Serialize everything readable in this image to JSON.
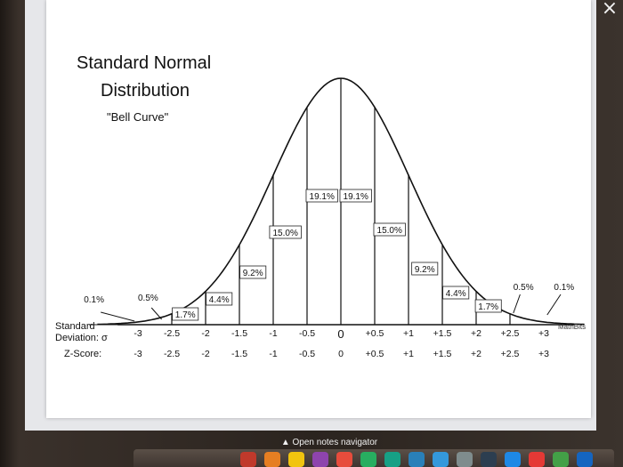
{
  "window": {
    "close_icon": "×"
  },
  "chart_data": {
    "type": "line",
    "title_line1": "Standard Normal",
    "title_line2": "Distribution",
    "subtitle": "\"Bell Curve\"",
    "segments": [
      {
        "label": "0.1%",
        "value": 0.1
      },
      {
        "label": "0.5%",
        "value": 0.5
      },
      {
        "label": "1.7%",
        "value": 1.7
      },
      {
        "label": "4.4%",
        "value": 4.4
      },
      {
        "label": "9.2%",
        "value": 9.2
      },
      {
        "label": "15.0%",
        "value": 15.0
      },
      {
        "label": "19.1%",
        "value": 19.1
      },
      {
        "label": "19.1%",
        "value": 19.1
      },
      {
        "label": "15.0%",
        "value": 15.0
      },
      {
        "label": "9.2%",
        "value": 9.2
      },
      {
        "label": "4.4%",
        "value": 4.4
      },
      {
        "label": "1.7%",
        "value": 1.7
      },
      {
        "label": "0.5%",
        "value": 0.5
      },
      {
        "label": "0.1%",
        "value": 0.1
      }
    ],
    "sd_label_line1": "Standard",
    "sd_label_line2": "Deviation: σ",
    "z_label": "Z-Score:",
    "sd_ticks": [
      "-3",
      "-2.5",
      "-2",
      "-1.5",
      "-1",
      "-0.5",
      "0",
      "+0.5",
      "+1",
      "+1.5",
      "+2",
      "+2.5",
      "+3"
    ],
    "z_ticks": [
      "-3",
      "-2.5",
      "-2",
      "-1.5",
      "-1",
      "-0.5",
      "0",
      "+0.5",
      "+1",
      "+1.5",
      "+2",
      "+2.5",
      "+3"
    ],
    "xlim": [
      -3,
      3
    ],
    "watermark": "MathBits"
  },
  "navigator": {
    "label": "▲ Open notes navigator"
  },
  "dock": {
    "icons": [
      {
        "name": "app-icon-1",
        "color": "#c0392b"
      },
      {
        "name": "app-icon-2",
        "color": "#e67e22"
      },
      {
        "name": "app-icon-3",
        "color": "#f1c40f"
      },
      {
        "name": "app-icon-4",
        "color": "#8e44ad"
      },
      {
        "name": "app-icon-5",
        "color": "#e74c3c"
      },
      {
        "name": "app-icon-6",
        "color": "#27ae60"
      },
      {
        "name": "app-icon-7",
        "color": "#16a085"
      },
      {
        "name": "app-icon-8",
        "color": "#2980b9"
      },
      {
        "name": "app-icon-9",
        "color": "#3498db"
      },
      {
        "name": "app-icon-10",
        "color": "#7f8c8d"
      },
      {
        "name": "app-icon-11",
        "color": "#2c3e50"
      },
      {
        "name": "app-icon-12",
        "color": "#1e88e5"
      },
      {
        "name": "app-icon-13",
        "color": "#e53935"
      },
      {
        "name": "app-icon-14",
        "color": "#43a047"
      },
      {
        "name": "app-icon-15",
        "color": "#1565c0"
      }
    ]
  }
}
